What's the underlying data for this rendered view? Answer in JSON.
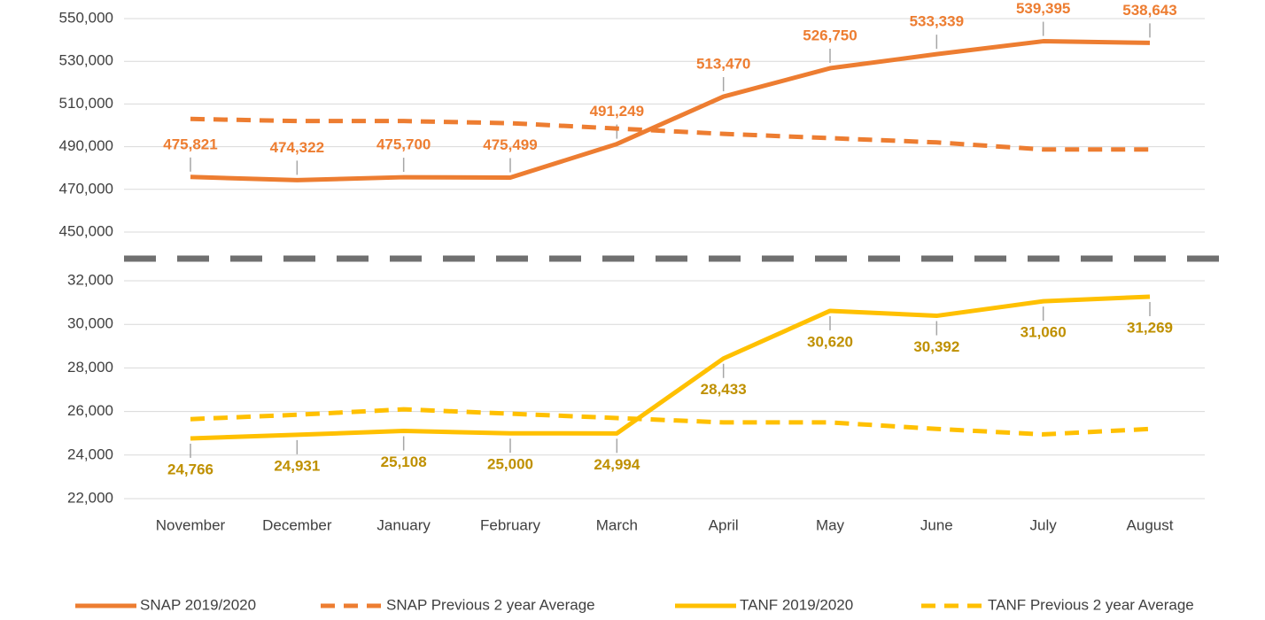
{
  "chart_data": [
    {
      "type": "line",
      "ylim": [
        450000,
        550000
      ],
      "yticks": [
        {
          "value": 450000,
          "label": "450,000"
        },
        {
          "value": 470000,
          "label": "470,000"
        },
        {
          "value": 490000,
          "label": "490,000"
        },
        {
          "value": 510000,
          "label": "510,000"
        },
        {
          "value": 530000,
          "label": "530,000"
        },
        {
          "value": 550000,
          "label": "550,000"
        }
      ],
      "grid": true,
      "label_side": "above",
      "series": [
        {
          "name": "SNAP 2019/2020",
          "color": "#ed7d31",
          "dash": false,
          "label_color": "#ed7d31",
          "values": [
            475821,
            474322,
            475700,
            475499,
            491249,
            513470,
            526750,
            533339,
            539395,
            538643
          ],
          "value_labels": [
            "475,821",
            "474,322",
            "475,700",
            "475,499",
            "491,249",
            "513,470",
            "526,750",
            "533,339",
            "539,395",
            "538,643"
          ]
        },
        {
          "name": "SNAP Previous 2 year Average",
          "color": "#ed7d31",
          "dash": true,
          "values": [
            503000,
            502000,
            502000,
            501000,
            498500,
            496000,
            494000,
            492000,
            488700,
            488700
          ]
        }
      ]
    },
    {
      "type": "line",
      "categories": [
        "November",
        "December",
        "January",
        "February",
        "March",
        "April",
        "May",
        "June",
        "July",
        "August"
      ],
      "ylim": [
        22000,
        32000
      ],
      "yticks": [
        {
          "value": 22000,
          "label": "22,000"
        },
        {
          "value": 24000,
          "label": "24,000"
        },
        {
          "value": 26000,
          "label": "26,000"
        },
        {
          "value": 28000,
          "label": "28,000"
        },
        {
          "value": 30000,
          "label": "30,000"
        },
        {
          "value": 32000,
          "label": "32,000"
        }
      ],
      "grid": true,
      "label_side": "below",
      "series": [
        {
          "name": "TANF 2019/2020",
          "color": "#ffc000",
          "dash": false,
          "label_color": "#bf9000",
          "values": [
            24766,
            24931,
            25108,
            25000,
            24994,
            28433,
            30620,
            30392,
            31060,
            31269
          ],
          "value_labels": [
            "24,766",
            "24,931",
            "25,108",
            "25,000",
            "24,994",
            "28,433",
            "30,620",
            "30,392",
            "31,060",
            "31,269"
          ]
        },
        {
          "name": "TANF Previous 2 year Average",
          "color": "#ffc000",
          "dash": true,
          "values": [
            25650,
            25850,
            26100,
            25900,
            25700,
            25500,
            25500,
            25200,
            24950,
            25200
          ]
        }
      ]
    }
  ]
}
